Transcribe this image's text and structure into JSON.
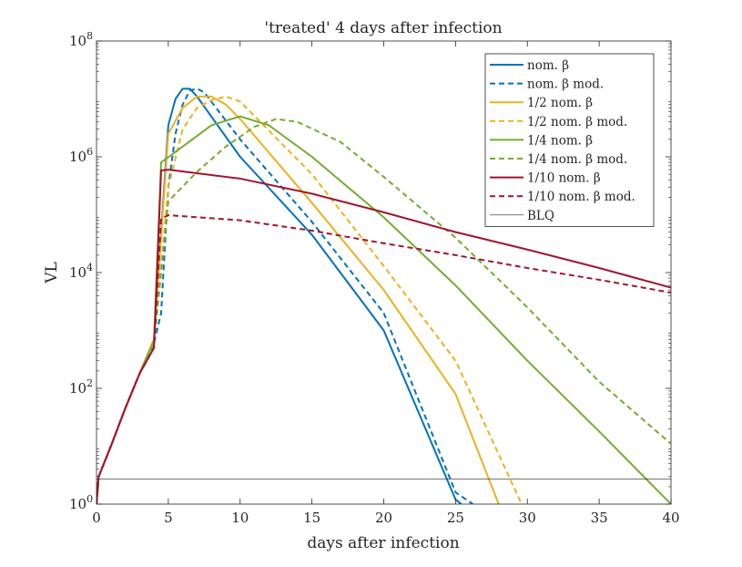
{
  "chart_data": {
    "type": "line",
    "title": "'treated' 4 days after infection",
    "xlabel": "days after infection",
    "ylabel": "VL",
    "xlim": [
      0,
      40
    ],
    "ylim": [
      1,
      100000000
    ],
    "yscale": "log",
    "grid": false,
    "legend_position": "top-right",
    "x_ticks": [
      "0",
      "5",
      "10",
      "15",
      "20",
      "25",
      "30",
      "35",
      "40"
    ],
    "y_ticks": [
      {
        "value": 1,
        "base": "10",
        "exp": "0"
      },
      {
        "value": 100,
        "base": "10",
        "exp": "2"
      },
      {
        "value": 10000,
        "base": "10",
        "exp": "4"
      },
      {
        "value": 1000000,
        "base": "10",
        "exp": "6"
      },
      {
        "value": 100000000,
        "base": "10",
        "exp": "8"
      }
    ],
    "series": [
      {
        "name": "nom. β",
        "color": "#0072BD",
        "dash": "solid",
        "points": [
          [
            0,
            1
          ],
          [
            0.15,
            3
          ],
          [
            1,
            10
          ],
          [
            2,
            45
          ],
          [
            3,
            180
          ],
          [
            4,
            700
          ],
          [
            5,
            3500000
          ],
          [
            5.5,
            10000000
          ],
          [
            6,
            15000000
          ],
          [
            6.5,
            15000000
          ],
          [
            7,
            11000000
          ],
          [
            10,
            1000000
          ],
          [
            15,
            45000
          ],
          [
            20,
            1000
          ],
          [
            25,
            1.2
          ],
          [
            25.4,
            1
          ]
        ]
      },
      {
        "name": "nom. β mod.",
        "color": "#0072BD",
        "dash": "dashed",
        "points": [
          [
            0,
            1
          ],
          [
            0.15,
            3
          ],
          [
            1,
            10
          ],
          [
            2,
            45
          ],
          [
            3,
            180
          ],
          [
            4,
            600
          ],
          [
            4.5,
            2000
          ],
          [
            5,
            300000
          ],
          [
            5.5,
            2500000
          ],
          [
            6,
            8000000
          ],
          [
            6.5,
            14000000
          ],
          [
            7,
            15000000
          ],
          [
            7.5,
            13000000
          ],
          [
            10,
            2000000
          ],
          [
            15,
            75000
          ],
          [
            20,
            2000
          ],
          [
            25,
            1.6
          ],
          [
            26.2,
            1
          ]
        ]
      },
      {
        "name": "1/2 nom. β",
        "color": "#EDB120",
        "dash": "solid",
        "points": [
          [
            0,
            1
          ],
          [
            0.15,
            3
          ],
          [
            1,
            10
          ],
          [
            2,
            45
          ],
          [
            3,
            180
          ],
          [
            4,
            700
          ],
          [
            5,
            2500000
          ],
          [
            6,
            7000000
          ],
          [
            7,
            11000000
          ],
          [
            8,
            11000000
          ],
          [
            9,
            8000000
          ],
          [
            10,
            4500000
          ],
          [
            15,
            160000
          ],
          [
            20,
            5000
          ],
          [
            25,
            80
          ],
          [
            28,
            1
          ]
        ]
      },
      {
        "name": "1/2 nom. β mod.",
        "color": "#EDB120",
        "dash": "dashed",
        "points": [
          [
            0,
            1
          ],
          [
            0.15,
            3
          ],
          [
            1,
            10
          ],
          [
            2,
            45
          ],
          [
            3,
            180
          ],
          [
            4,
            600
          ],
          [
            5,
            300000
          ],
          [
            6,
            3000000
          ],
          [
            7,
            7000000
          ],
          [
            8,
            9500000
          ],
          [
            9,
            11000000
          ],
          [
            10,
            9000000
          ],
          [
            15,
            500000
          ],
          [
            20,
            13000
          ],
          [
            25,
            300
          ],
          [
            29.6,
            1
          ]
        ]
      },
      {
        "name": "1/4 nom. β",
        "color": "#77AC30",
        "dash": "solid",
        "points": [
          [
            0,
            1
          ],
          [
            0.15,
            3
          ],
          [
            1,
            10
          ],
          [
            2,
            45
          ],
          [
            3,
            180
          ],
          [
            4,
            650
          ],
          [
            4.5,
            800000
          ],
          [
            6,
            1500000
          ],
          [
            8,
            3500000
          ],
          [
            10,
            5000000
          ],
          [
            12,
            3500000
          ],
          [
            15,
            1000000
          ],
          [
            20,
            90000
          ],
          [
            25,
            6000
          ],
          [
            30,
            300
          ],
          [
            35,
            18
          ],
          [
            40,
            1
          ]
        ]
      },
      {
        "name": "1/4 nom. β mod.",
        "color": "#77AC30",
        "dash": "dashed",
        "points": [
          [
            0,
            1
          ],
          [
            0.15,
            3
          ],
          [
            1,
            10
          ],
          [
            2,
            45
          ],
          [
            3,
            180
          ],
          [
            4,
            600
          ],
          [
            5,
            170000
          ],
          [
            7,
            550000
          ],
          [
            9,
            1500000
          ],
          [
            11,
            3300000
          ],
          [
            12.5,
            4500000
          ],
          [
            14,
            4000000
          ],
          [
            17,
            1800000
          ],
          [
            20,
            450000
          ],
          [
            25,
            40000
          ],
          [
            30,
            2500
          ],
          [
            35,
            130
          ],
          [
            40,
            11
          ]
        ]
      },
      {
        "name": "1/10 nom. β",
        "color": "#A2142F",
        "dash": "solid",
        "points": [
          [
            0,
            1
          ],
          [
            0.15,
            3
          ],
          [
            1,
            10
          ],
          [
            2,
            45
          ],
          [
            3,
            180
          ],
          [
            4,
            500
          ],
          [
            4.5,
            580000
          ],
          [
            5,
            600000
          ],
          [
            10,
            420000
          ],
          [
            15,
            230000
          ],
          [
            20,
            110000
          ],
          [
            25,
            50000
          ],
          [
            30,
            25000
          ],
          [
            35,
            12000
          ],
          [
            40,
            5500
          ]
        ]
      },
      {
        "name": "1/10 nom. β mod.",
        "color": "#A2142F",
        "dash": "dashed",
        "points": [
          [
            0,
            1
          ],
          [
            0.15,
            3
          ],
          [
            1,
            10
          ],
          [
            2,
            45
          ],
          [
            3,
            180
          ],
          [
            4,
            500
          ],
          [
            4.5,
            85000
          ],
          [
            5,
            98000
          ],
          [
            10,
            80000
          ],
          [
            15,
            53000
          ],
          [
            20,
            32000
          ],
          [
            25,
            20000
          ],
          [
            30,
            12000
          ],
          [
            35,
            7500
          ],
          [
            40,
            4500
          ]
        ]
      },
      {
        "name": "BLQ",
        "color": "#262626",
        "dash": "thin",
        "points": [
          [
            0,
            2.7
          ],
          [
            40,
            2.7
          ]
        ]
      }
    ]
  }
}
